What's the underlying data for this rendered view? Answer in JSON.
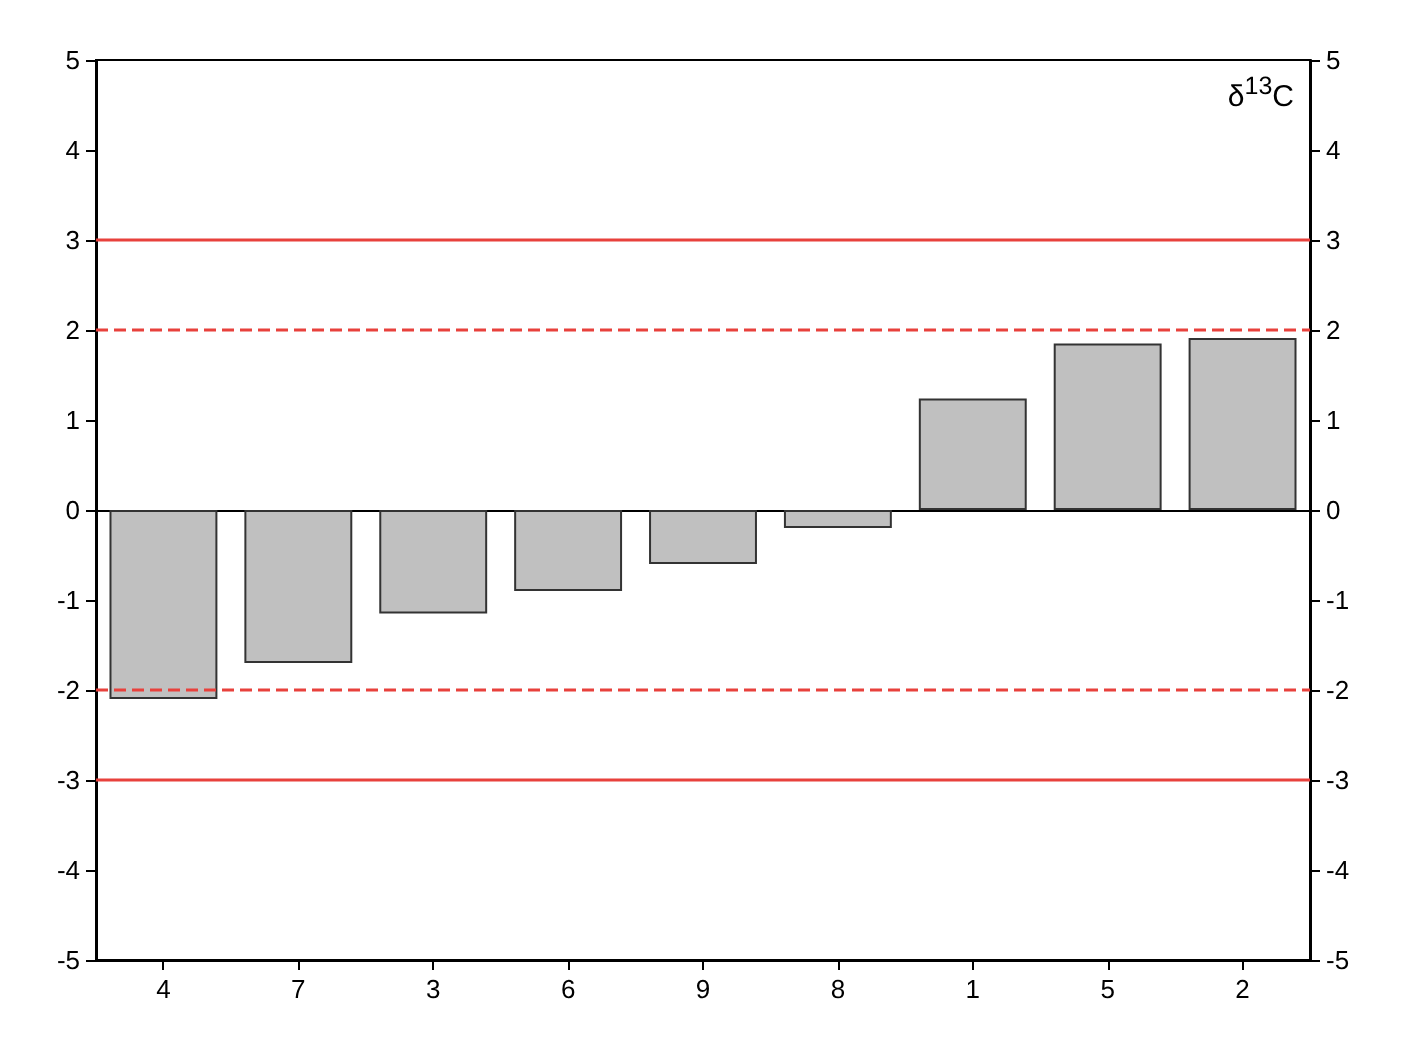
{
  "chart_data": {
    "type": "bar",
    "y2label": "δ$^{13}$C",
    "categories": [
      "4",
      "7",
      "3",
      "6",
      "9",
      "8",
      "1",
      "5",
      "2"
    ],
    "values": [
      -2.1,
      -1.7,
      -1.15,
      -0.9,
      -0.6,
      -0.2,
      1.24,
      1.85,
      1.91
    ],
    "color": "#c0c0c0",
    "ylim": [
      -5,
      5
    ],
    "yticks": [
      -5,
      -4,
      -3,
      -2,
      -1,
      0,
      1,
      2,
      3,
      4,
      5
    ],
    "y2lim": [
      -5,
      5
    ],
    "y2ticks": [
      -5,
      -4,
      -3,
      -2,
      -1,
      0,
      1,
      2,
      3,
      4,
      5
    ],
    "ref_lines": [
      {
        "axis": "y",
        "value": 3,
        "color": "#e8413c",
        "line_style": "solid"
      },
      {
        "axis": "y",
        "value": 2,
        "color": "#e8413c",
        "line_style": "dashed"
      },
      {
        "axis": "y",
        "value": -2,
        "color": "#e8413c",
        "line_style": "dashed"
      },
      {
        "axis": "y",
        "value": -3,
        "color": "#e8413c",
        "line_style": "solid"
      }
    ],
    "grid": false
  }
}
